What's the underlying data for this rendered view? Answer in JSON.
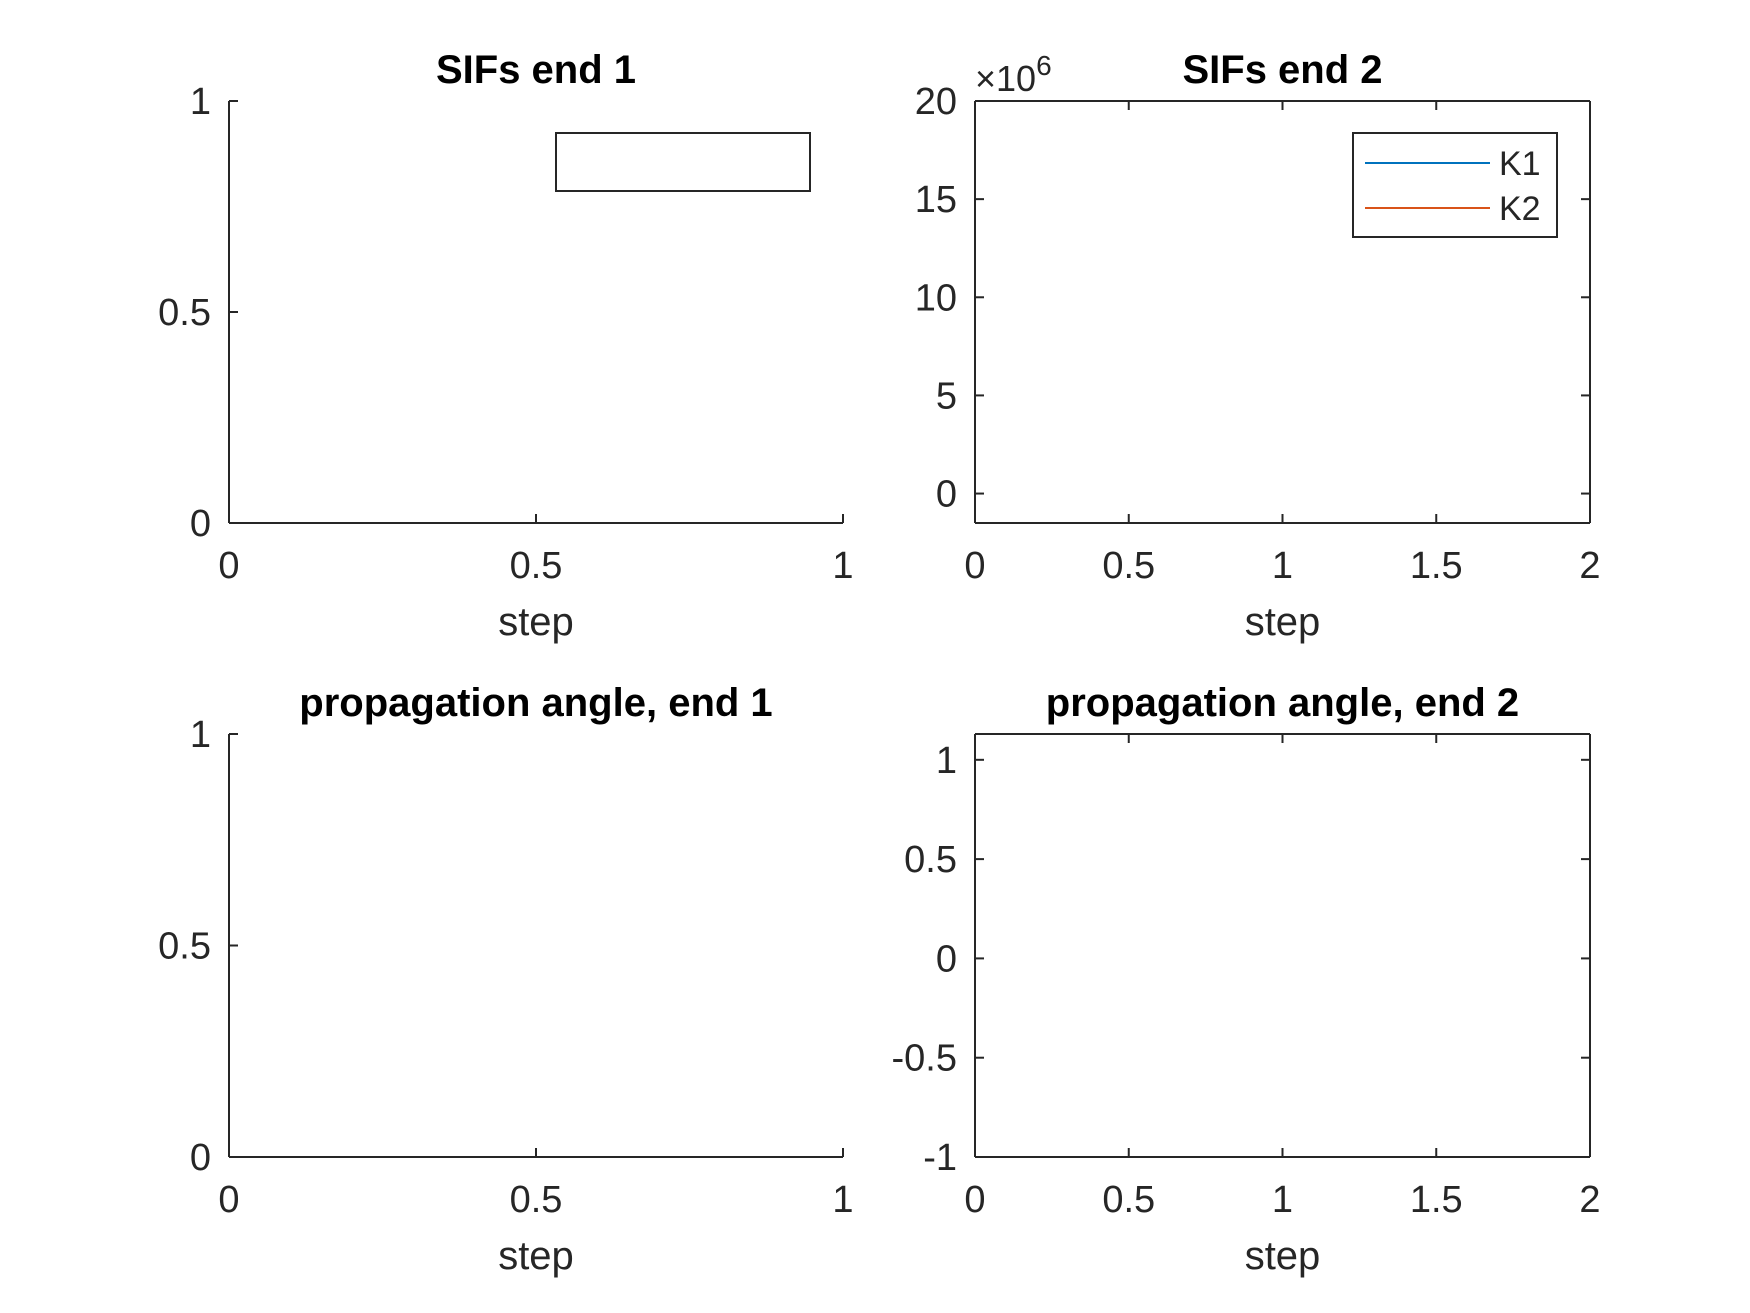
{
  "figure": {
    "background": "#ffffff",
    "axis_color": "#262626"
  },
  "chart_data": [
    {
      "type": "line",
      "title": "SIFs end 1",
      "xlabel": "step",
      "ylabel": "",
      "xlim": [
        0,
        1
      ],
      "ylim": [
        0,
        1
      ],
      "xticks": [
        0,
        0.5,
        1
      ],
      "xtick_labels": [
        "0",
        "0.5",
        "1"
      ],
      "yticks": [
        0,
        0.5,
        1
      ],
      "ytick_labels": [
        "0",
        "0.5",
        "1"
      ],
      "box": false,
      "grid": false,
      "legend": {
        "placement": "top-right",
        "entries": []
      },
      "series": []
    },
    {
      "type": "line",
      "title": "SIFs end 2",
      "xlabel": "step",
      "ylabel": "",
      "xlim": [
        0,
        2
      ],
      "ylim": [
        -1.5,
        20
      ],
      "y_exponent_label": "×10",
      "y_exponent_power": "6",
      "xticks": [
        0,
        0.5,
        1,
        1.5,
        2
      ],
      "xtick_labels": [
        "0",
        "0.5",
        "1",
        "1.5",
        "2"
      ],
      "yticks": [
        0,
        5,
        10,
        15,
        20
      ],
      "ytick_labels": [
        "0",
        "5",
        "10",
        "15",
        "20"
      ],
      "box": true,
      "grid": false,
      "legend": {
        "placement": "top-right",
        "entries": [
          {
            "name": "K1",
            "color": "#0072BD"
          },
          {
            "name": "K2",
            "color": "#D95319"
          }
        ]
      },
      "series": [
        {
          "name": "K1",
          "color": "#0072BD",
          "x": [],
          "y": []
        },
        {
          "name": "K2",
          "color": "#D95319",
          "x": [],
          "y": []
        }
      ]
    },
    {
      "type": "line",
      "title": "propagation angle, end 1",
      "xlabel": "step",
      "ylabel": "",
      "xlim": [
        0,
        1
      ],
      "ylim": [
        0,
        1
      ],
      "xticks": [
        0,
        0.5,
        1
      ],
      "xtick_labels": [
        "0",
        "0.5",
        "1"
      ],
      "yticks": [
        0,
        0.5,
        1
      ],
      "ytick_labels": [
        "0",
        "0.5",
        "1"
      ],
      "box": false,
      "grid": false,
      "series": []
    },
    {
      "type": "line",
      "title": "propagation angle, end 2",
      "xlabel": "step",
      "ylabel": "",
      "xlim": [
        0,
        2
      ],
      "ylim": [
        -1,
        1.13
      ],
      "xticks": [
        0,
        0.5,
        1,
        1.5,
        2
      ],
      "xtick_labels": [
        "0",
        "0.5",
        "1",
        "1.5",
        "2"
      ],
      "yticks": [
        -1,
        -0.5,
        0,
        0.5,
        1
      ],
      "ytick_labels": [
        "-1",
        "-0.5",
        "0",
        "0.5",
        "1"
      ],
      "box": true,
      "grid": false,
      "series": []
    }
  ]
}
